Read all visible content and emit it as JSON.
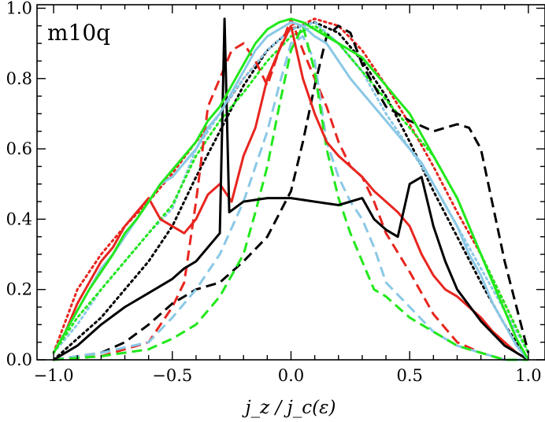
{
  "chart_data": {
    "type": "line",
    "title": "m10q",
    "xlabel": "j_z / j_c(ε)",
    "ylabel": "",
    "xlim": [
      -1.07,
      1.07
    ],
    "ylim": [
      0.0,
      1.01
    ],
    "xticks": [
      -1.0,
      -0.5,
      0.0,
      0.5,
      1.0
    ],
    "xtick_labels": [
      "−1.0",
      "−0.5",
      "0.0",
      "0.5",
      "1.0"
    ],
    "yticks": [
      0.0,
      0.2,
      0.4,
      0.6,
      0.8,
      1.0
    ],
    "ytick_labels": [
      "0.0",
      "0.2",
      "0.4",
      "0.6",
      "0.8",
      "1.0"
    ],
    "grid": false,
    "series": [
      {
        "name": "red-dotted",
        "color": "#e8251f",
        "dash": "dotted",
        "x": [
          -1.0,
          -0.9,
          -0.8,
          -0.7,
          -0.6,
          -0.5,
          -0.4,
          -0.3,
          -0.2,
          -0.1,
          0.0,
          0.1,
          0.2,
          0.3,
          0.4,
          0.5,
          0.6,
          0.7,
          0.8,
          0.9,
          1.0
        ],
        "y": [
          0.02,
          0.2,
          0.3,
          0.38,
          0.45,
          0.53,
          0.62,
          0.7,
          0.8,
          0.88,
          0.94,
          0.97,
          0.95,
          0.88,
          0.78,
          0.67,
          0.55,
          0.42,
          0.3,
          0.16,
          0.02
        ]
      },
      {
        "name": "black-dotted",
        "color": "#000000",
        "dash": "dotted",
        "x": [
          -1.0,
          -0.9,
          -0.8,
          -0.7,
          -0.6,
          -0.5,
          -0.4,
          -0.3,
          -0.2,
          -0.1,
          0.0,
          0.1,
          0.2,
          0.3,
          0.4,
          0.5,
          0.6,
          0.7,
          0.8,
          0.9,
          1.0
        ],
        "y": [
          0.0,
          0.06,
          0.12,
          0.2,
          0.28,
          0.38,
          0.52,
          0.65,
          0.78,
          0.88,
          0.94,
          0.96,
          0.93,
          0.85,
          0.75,
          0.62,
          0.48,
          0.35,
          0.22,
          0.1,
          0.0
        ]
      },
      {
        "name": "lightblue-dotted",
        "color": "#8ac8e6",
        "dash": "dotted",
        "x": [
          -1.0,
          -0.9,
          -0.8,
          -0.7,
          -0.6,
          -0.5,
          -0.4,
          -0.3,
          -0.2,
          -0.1,
          0.0,
          0.1,
          0.2,
          0.3,
          0.4,
          0.5,
          0.6,
          0.7,
          0.8,
          0.9,
          1.0
        ],
        "y": [
          0.02,
          0.1,
          0.2,
          0.28,
          0.36,
          0.43,
          0.6,
          0.7,
          0.8,
          0.88,
          0.94,
          0.96,
          0.9,
          0.82,
          0.7,
          0.6,
          0.5,
          0.38,
          0.26,
          0.14,
          0.02
        ]
      },
      {
        "name": "green-dotted",
        "color": "#22e81c",
        "dash": "dotted",
        "x": [
          -1.0,
          -0.9,
          -0.8,
          -0.7,
          -0.6,
          -0.5,
          -0.4,
          -0.3,
          -0.2,
          -0.1,
          0.0,
          0.1,
          0.2,
          0.3,
          0.4,
          0.5,
          0.6,
          0.7,
          0.8,
          0.9,
          1.0
        ],
        "y": [
          0.02,
          0.12,
          0.2,
          0.28,
          0.36,
          0.44,
          0.58,
          0.68,
          0.76,
          0.85,
          0.92,
          0.95,
          0.9,
          0.82,
          0.74,
          0.66,
          0.58,
          0.46,
          0.3,
          0.16,
          0.02
        ]
      },
      {
        "name": "red-dashed",
        "color": "#e8251f",
        "dash": "dashed",
        "x": [
          -1.0,
          -0.8,
          -0.6,
          -0.5,
          -0.45,
          -0.4,
          -0.35,
          -0.3,
          -0.25,
          -0.2,
          -0.15,
          -0.1,
          -0.05,
          0.0,
          0.05,
          0.1,
          0.15,
          0.2,
          0.25,
          0.3,
          0.35,
          0.4,
          0.5,
          0.6,
          0.7,
          0.8,
          0.9,
          1.0
        ],
        "y": [
          0.0,
          0.01,
          0.05,
          0.15,
          0.22,
          0.45,
          0.72,
          0.8,
          0.88,
          0.9,
          0.85,
          0.78,
          0.88,
          0.97,
          0.88,
          0.8,
          0.72,
          0.62,
          0.55,
          0.52,
          0.45,
          0.36,
          0.25,
          0.13,
          0.05,
          0.02,
          0.0,
          0.0
        ]
      },
      {
        "name": "black-dashed",
        "color": "#000000",
        "dash": "dashed",
        "x": [
          -1.0,
          -0.8,
          -0.7,
          -0.6,
          -0.5,
          -0.4,
          -0.3,
          -0.2,
          -0.1,
          0.0,
          0.05,
          0.1,
          0.15,
          0.2,
          0.25,
          0.3,
          0.4,
          0.5,
          0.6,
          0.7,
          0.75,
          0.8,
          0.9,
          1.0
        ],
        "y": [
          0.0,
          0.02,
          0.05,
          0.1,
          0.16,
          0.2,
          0.22,
          0.28,
          0.35,
          0.48,
          0.62,
          0.78,
          0.92,
          0.95,
          0.93,
          0.84,
          0.72,
          0.68,
          0.65,
          0.67,
          0.66,
          0.6,
          0.28,
          0.02
        ]
      },
      {
        "name": "lightblue-dashed",
        "color": "#8ac8e6",
        "dash": "dashed",
        "x": [
          -1.0,
          -0.8,
          -0.6,
          -0.5,
          -0.4,
          -0.3,
          -0.2,
          -0.1,
          -0.05,
          0.0,
          0.05,
          0.1,
          0.15,
          0.2,
          0.25,
          0.3,
          0.35,
          0.4,
          0.5,
          0.6,
          0.7,
          0.8,
          0.9,
          1.0
        ],
        "y": [
          0.0,
          0.02,
          0.05,
          0.12,
          0.2,
          0.3,
          0.45,
          0.65,
          0.78,
          0.9,
          0.92,
          0.85,
          0.62,
          0.52,
          0.45,
          0.4,
          0.32,
          0.22,
          0.15,
          0.08,
          0.04,
          0.02,
          0.0,
          0.0
        ]
      },
      {
        "name": "green-dashed",
        "color": "#22e81c",
        "dash": "dashed",
        "x": [
          -1.0,
          -0.8,
          -0.6,
          -0.5,
          -0.4,
          -0.3,
          -0.2,
          -0.15,
          -0.1,
          -0.05,
          0.0,
          0.05,
          0.1,
          0.15,
          0.2,
          0.25,
          0.3,
          0.35,
          0.4,
          0.45,
          0.5,
          0.6,
          0.7,
          0.8,
          0.9,
          1.0
        ],
        "y": [
          0.0,
          0.01,
          0.03,
          0.06,
          0.1,
          0.18,
          0.3,
          0.42,
          0.55,
          0.72,
          0.88,
          0.95,
          0.82,
          0.6,
          0.46,
          0.36,
          0.28,
          0.2,
          0.18,
          0.15,
          0.12,
          0.08,
          0.04,
          0.02,
          0.0,
          0.0
        ]
      },
      {
        "name": "red-solid",
        "color": "#e8251f",
        "dash": "solid",
        "x": [
          -1.0,
          -0.95,
          -0.9,
          -0.85,
          -0.8,
          -0.75,
          -0.7,
          -0.65,
          -0.6,
          -0.55,
          -0.5,
          -0.45,
          -0.4,
          -0.35,
          -0.3,
          -0.25,
          -0.2,
          -0.15,
          -0.1,
          -0.05,
          0.0,
          0.05,
          0.1,
          0.15,
          0.2,
          0.25,
          0.3,
          0.35,
          0.4,
          0.45,
          0.5,
          0.55,
          0.6,
          0.65,
          0.7,
          0.75,
          0.8,
          0.85,
          0.9,
          0.95,
          1.0
        ],
        "y": [
          0.02,
          0.08,
          0.16,
          0.22,
          0.28,
          0.32,
          0.38,
          0.42,
          0.46,
          0.4,
          0.38,
          0.36,
          0.4,
          0.47,
          0.5,
          0.45,
          0.58,
          0.66,
          0.8,
          0.88,
          0.95,
          0.8,
          0.7,
          0.62,
          0.58,
          0.55,
          0.52,
          0.48,
          0.45,
          0.42,
          0.38,
          0.3,
          0.24,
          0.2,
          0.18,
          0.15,
          0.12,
          0.08,
          0.05,
          0.02,
          0.0
        ]
      },
      {
        "name": "black-solid",
        "color": "#000000",
        "dash": "solid",
        "x": [
          -1.0,
          -0.9,
          -0.8,
          -0.7,
          -0.6,
          -0.5,
          -0.45,
          -0.4,
          -0.35,
          -0.3,
          -0.28,
          -0.26,
          -0.2,
          -0.1,
          0.0,
          0.1,
          0.2,
          0.3,
          0.35,
          0.4,
          0.45,
          0.5,
          0.55,
          0.6,
          0.65,
          0.7,
          0.8,
          0.9,
          1.0
        ],
        "y": [
          0.0,
          0.04,
          0.1,
          0.15,
          0.19,
          0.23,
          0.26,
          0.28,
          0.32,
          0.36,
          0.97,
          0.42,
          0.45,
          0.46,
          0.46,
          0.45,
          0.44,
          0.46,
          0.4,
          0.37,
          0.35,
          0.5,
          0.52,
          0.38,
          0.28,
          0.2,
          0.11,
          0.04,
          0.0
        ]
      },
      {
        "name": "lightblue-solid",
        "color": "#8ac8e6",
        "dash": "solid",
        "x": [
          -1.0,
          -0.95,
          -0.9,
          -0.85,
          -0.8,
          -0.75,
          -0.7,
          -0.65,
          -0.6,
          -0.55,
          -0.5,
          -0.45,
          -0.4,
          -0.35,
          -0.3,
          -0.25,
          -0.2,
          -0.15,
          -0.1,
          -0.05,
          0.0,
          0.05,
          0.1,
          0.15,
          0.2,
          0.25,
          0.3,
          0.35,
          0.4,
          0.45,
          0.5,
          0.55,
          0.6,
          0.65,
          0.7,
          0.75,
          0.8,
          0.85,
          0.9,
          0.95,
          1.0
        ],
        "y": [
          0.02,
          0.08,
          0.14,
          0.2,
          0.26,
          0.3,
          0.35,
          0.4,
          0.45,
          0.5,
          0.52,
          0.56,
          0.6,
          0.66,
          0.7,
          0.76,
          0.82,
          0.88,
          0.92,
          0.94,
          0.96,
          0.95,
          0.92,
          0.9,
          0.85,
          0.8,
          0.76,
          0.72,
          0.68,
          0.64,
          0.6,
          0.56,
          0.5,
          0.44,
          0.38,
          0.3,
          0.24,
          0.16,
          0.1,
          0.04,
          0.0
        ]
      },
      {
        "name": "green-solid",
        "color": "#22e81c",
        "dash": "solid",
        "x": [
          -1.0,
          -0.95,
          -0.9,
          -0.85,
          -0.8,
          -0.75,
          -0.7,
          -0.65,
          -0.6,
          -0.55,
          -0.5,
          -0.45,
          -0.4,
          -0.35,
          -0.3,
          -0.25,
          -0.2,
          -0.15,
          -0.1,
          -0.05,
          0.0,
          0.05,
          0.1,
          0.15,
          0.2,
          0.25,
          0.3,
          0.35,
          0.4,
          0.45,
          0.5,
          0.55,
          0.6,
          0.65,
          0.7,
          0.75,
          0.8,
          0.85,
          0.9,
          0.95,
          1.0
        ],
        "y": [
          0.02,
          0.08,
          0.14,
          0.2,
          0.25,
          0.3,
          0.36,
          0.4,
          0.45,
          0.5,
          0.54,
          0.58,
          0.62,
          0.68,
          0.72,
          0.78,
          0.84,
          0.9,
          0.94,
          0.96,
          0.97,
          0.96,
          0.94,
          0.92,
          0.9,
          0.88,
          0.86,
          0.82,
          0.78,
          0.74,
          0.7,
          0.64,
          0.58,
          0.52,
          0.46,
          0.38,
          0.3,
          0.22,
          0.14,
          0.06,
          0.0
        ]
      }
    ]
  }
}
